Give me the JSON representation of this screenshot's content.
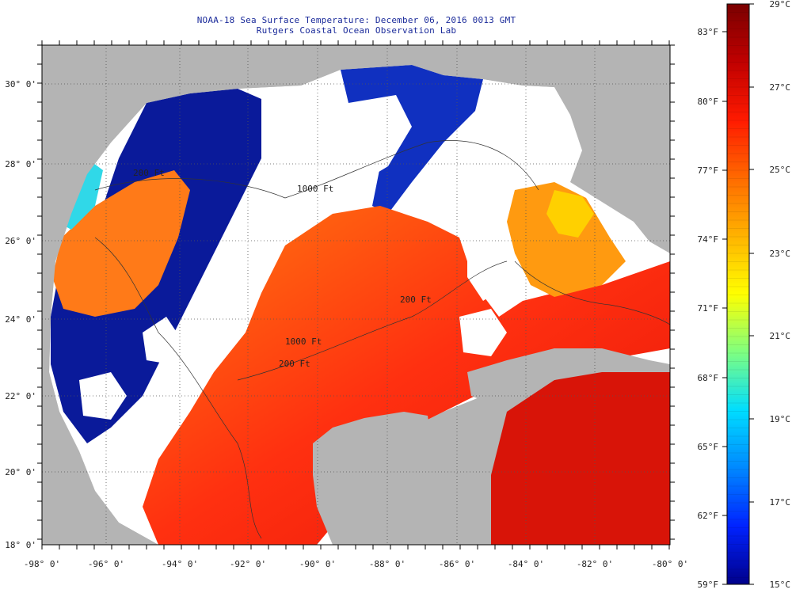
{
  "title_line1": "NOAA-18 Sea Surface Temperature:  December 06, 2016 0013 GMT",
  "title_line2": "Rutgers Coastal Ocean Observation Lab",
  "map": {
    "lon_labels": [
      "-98° 0'",
      "-96° 0'",
      "-94° 0'",
      "-92° 0'",
      "-90° 0'",
      "-88° 0'",
      "-86° 0'",
      "-84° 0'",
      "-82° 0'",
      "-80° 0'"
    ],
    "lat_labels": [
      "18° 0'",
      "20° 0'",
      "22° 0'",
      "24° 0'",
      "26° 0'",
      "28° 0'",
      "30° 0'"
    ],
    "contour_labels": [
      "200 Ft",
      "1000 Ft",
      "200 Ft",
      "1000 Ft",
      "200 Ft"
    ],
    "land_color": "#b4b4b4",
    "cloud_color": "#ffffff"
  },
  "colorbar": {
    "celsius_labels": [
      "29°C",
      "27°C",
      "25°C",
      "23°C",
      "21°C",
      "19°C",
      "17°C",
      "15°C"
    ],
    "fahrenheit_labels": [
      "83°F",
      "80°F",
      "77°F",
      "74°F",
      "71°F",
      "68°F",
      "65°F",
      "62°F",
      "59°F"
    ],
    "colors_top_to_bottom": [
      "#7a0000",
      "#c00000",
      "#ff1a00",
      "#ff6a00",
      "#ffb300",
      "#ffff00",
      "#7fff80",
      "#00ddff",
      "#0088ff",
      "#0022ff",
      "#00008a"
    ]
  }
}
